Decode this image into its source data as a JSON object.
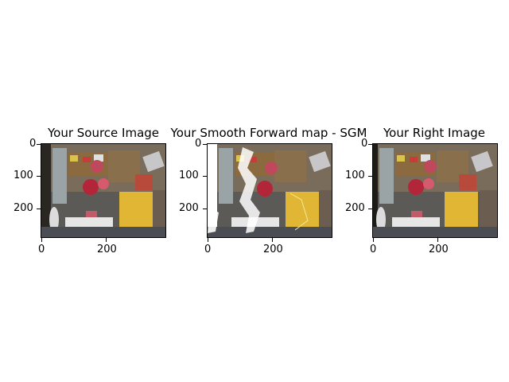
{
  "figure": {
    "panels": [
      {
        "title": "Your Source Image",
        "y_ticks": [
          "0",
          "100",
          "200"
        ],
        "x_ticks": [
          "0",
          "200"
        ]
      },
      {
        "title": "Your Smooth Forward map - SGM",
        "y_ticks": [
          "0",
          "100",
          "200"
        ],
        "x_ticks": [
          "0",
          "200"
        ]
      },
      {
        "title": "Your Right Image",
        "y_ticks": [
          "0",
          "100",
          "200"
        ],
        "x_ticks": [
          "0",
          "200"
        ]
      }
    ]
  }
}
